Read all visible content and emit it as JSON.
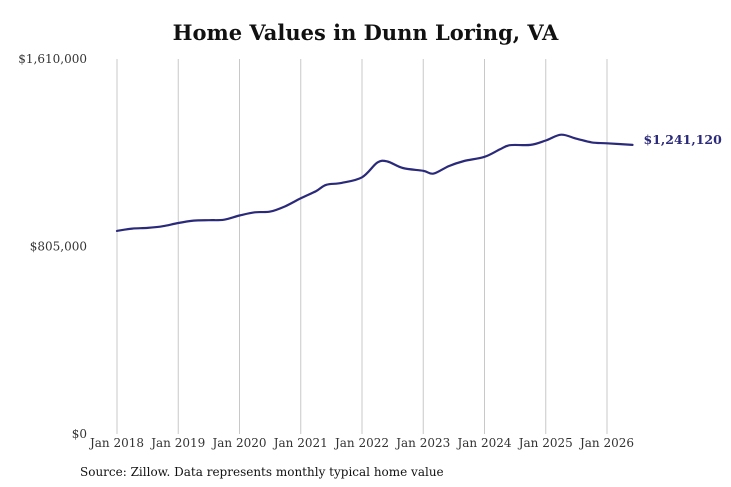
{
  "chart_data": {
    "type": "line",
    "title": "Home Values in Dunn Loring, VA",
    "source": "Source: Zillow. Data represents monthly typical home value",
    "ylim": [
      0,
      1610000
    ],
    "yticks": [
      {
        "value": 0,
        "label": "$0"
      },
      {
        "value": 805000,
        "label": "$805,000"
      },
      {
        "value": 1610000,
        "label": "$1,610,000"
      }
    ],
    "xticks": [
      {
        "value": "2018-01",
        "label": "Jan 2018"
      },
      {
        "value": "2019-01",
        "label": "Jan 2019"
      },
      {
        "value": "2020-01",
        "label": "Jan 2020"
      },
      {
        "value": "2021-01",
        "label": "Jan 2021"
      },
      {
        "value": "2022-01",
        "label": "Jan 2022"
      },
      {
        "value": "2023-01",
        "label": "Jan 2023"
      },
      {
        "value": "2024-01",
        "label": "Jan 2024"
      },
      {
        "value": "2025-01",
        "label": "Jan 2025"
      },
      {
        "value": "2026-01",
        "label": "Jan 2026"
      }
    ],
    "grid": "vertical",
    "line_color": "#2b2a7a",
    "end_label": "$1,241,120",
    "series": [
      {
        "points": [
          {
            "x": "2018-01",
            "y": 872000
          },
          {
            "x": "2018-04",
            "y": 882000
          },
          {
            "x": "2018-07",
            "y": 885000
          },
          {
            "x": "2018-10",
            "y": 892000
          },
          {
            "x": "2019-01",
            "y": 906000
          },
          {
            "x": "2019-04",
            "y": 916000
          },
          {
            "x": "2019-07",
            "y": 918000
          },
          {
            "x": "2019-10",
            "y": 920000
          },
          {
            "x": "2020-01",
            "y": 938000
          },
          {
            "x": "2020-04",
            "y": 952000
          },
          {
            "x": "2020-07",
            "y": 955000
          },
          {
            "x": "2020-10",
            "y": 978000
          },
          {
            "x": "2021-01",
            "y": 1012000
          },
          {
            "x": "2021-04",
            "y": 1043000
          },
          {
            "x": "2021-06",
            "y": 1070000
          },
          {
            "x": "2021-09",
            "y": 1078000
          },
          {
            "x": "2022-01",
            "y": 1102000
          },
          {
            "x": "2022-04",
            "y": 1165000
          },
          {
            "x": "2022-06",
            "y": 1170000
          },
          {
            "x": "2022-09",
            "y": 1142000
          },
          {
            "x": "2023-01",
            "y": 1130000
          },
          {
            "x": "2023-03",
            "y": 1118000
          },
          {
            "x": "2023-06",
            "y": 1150000
          },
          {
            "x": "2023-09",
            "y": 1172000
          },
          {
            "x": "2024-01",
            "y": 1190000
          },
          {
            "x": "2024-04",
            "y": 1222000
          },
          {
            "x": "2024-06",
            "y": 1240000
          },
          {
            "x": "2024-10",
            "y": 1241000
          },
          {
            "x": "2025-01",
            "y": 1260000
          },
          {
            "x": "2025-04",
            "y": 1285000
          },
          {
            "x": "2025-07",
            "y": 1268000
          },
          {
            "x": "2025-10",
            "y": 1252000
          },
          {
            "x": "2026-01",
            "y": 1248000
          },
          {
            "x": "2026-06",
            "y": 1241120
          }
        ]
      }
    ]
  }
}
